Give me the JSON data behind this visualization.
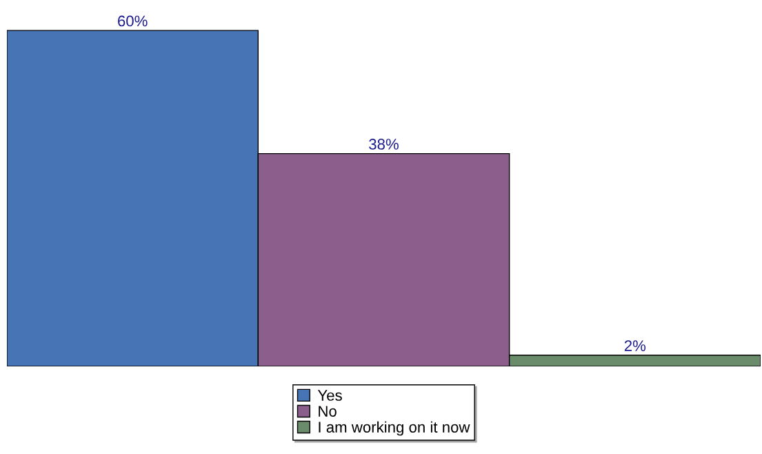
{
  "chart_data": {
    "type": "bar",
    "categories": [
      null
    ],
    "series": [
      {
        "name": "Yes",
        "color": "#4674b5",
        "values": [
          60
        ],
        "value_labels": [
          "60%"
        ]
      },
      {
        "name": "No",
        "color": "#8b5e8c",
        "values": [
          38
        ],
        "value_labels": [
          "38%"
        ]
      },
      {
        "name": "I am working on it now",
        "color": "#6b8c6b",
        "values": [
          2
        ],
        "value_labels": [
          "2%"
        ]
      }
    ],
    "legend": "bottom"
  }
}
